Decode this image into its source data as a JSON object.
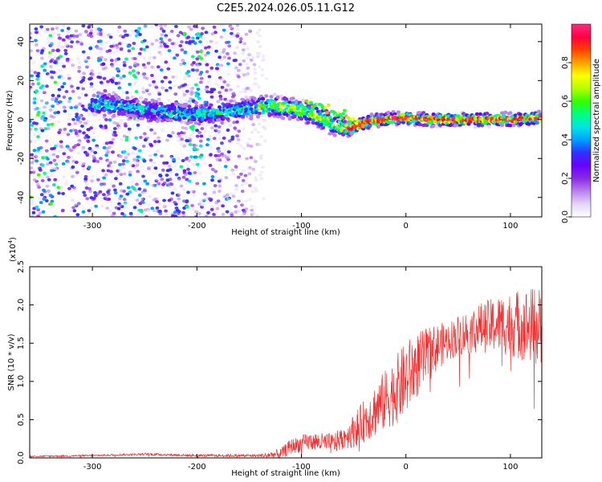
{
  "figure": {
    "title": "C2E5.2024.026.05.11.G12"
  },
  "chart_data": [
    {
      "type": "heatmap",
      "xlabel": "Height of straight line (km)",
      "ylabel": "Frequency (Hz)",
      "xlim": [
        -360,
        130
      ],
      "ylim": [
        -50,
        49
      ],
      "x_ticks": [
        -300,
        -200,
        -100,
        0,
        100
      ],
      "y_ticks": [
        -40,
        -20,
        0,
        20,
        40
      ],
      "colorbar": {
        "label": "Normalized spectral amplitude",
        "range": [
          0,
          1
        ],
        "ticks": [
          "0.0",
          "0.2",
          "0.4",
          "0.6",
          "0.8"
        ],
        "colors": [
          "#ffffff",
          "#e3d6f5",
          "#b980ee",
          "#8a2be2",
          "#6a00ff",
          "#3030ff",
          "#00a0ff",
          "#00e5e5",
          "#00ff80",
          "#33ff00",
          "#b3ff00",
          "#ffff00",
          "#ffa000",
          "#ff4000",
          "#ff0040",
          "#ff2a7f"
        ]
      },
      "ridge": [
        {
          "x": -290,
          "y": 8
        },
        {
          "x": -270,
          "y": 7
        },
        {
          "x": -250,
          "y": 5
        },
        {
          "x": -230,
          "y": 4
        },
        {
          "x": -210,
          "y": 3
        },
        {
          "x": -190,
          "y": 3
        },
        {
          "x": -170,
          "y": 4
        },
        {
          "x": -150,
          "y": 6
        },
        {
          "x": -130,
          "y": 7
        },
        {
          "x": -110,
          "y": 6
        },
        {
          "x": -90,
          "y": 3
        },
        {
          "x": -70,
          "y": -2
        },
        {
          "x": -55,
          "y": -5
        },
        {
          "x": -45,
          "y": -3
        },
        {
          "x": -35,
          "y": -1
        },
        {
          "x": -20,
          "y": 0
        },
        {
          "x": 0,
          "y": 1
        },
        {
          "x": 20,
          "y": 0
        },
        {
          "x": 40,
          "y": 0
        },
        {
          "x": 60,
          "y": 0
        },
        {
          "x": 80,
          "y": 0
        },
        {
          "x": 100,
          "y": 0
        },
        {
          "x": 130,
          "y": 1
        }
      ],
      "noise_extent_x": [
        -360,
        -130
      ]
    },
    {
      "type": "line",
      "xlabel": "Height of straight line (km)",
      "ylabel": "SNR (10 * v/v)",
      "yscale_label": "(x10",
      "yscale_exp": "4",
      "yscale_close": ")",
      "xlim": [
        -360,
        130
      ],
      "ylim": [
        0,
        2.5
      ],
      "x_ticks": [
        -300,
        -200,
        -100,
        0,
        100
      ],
      "y_ticks": [
        "0.0",
        "0.5",
        "1.0",
        "1.5",
        "2.0",
        "2.5"
      ],
      "series": [
        {
          "color": "#ee3333",
          "envelope": [
            {
              "x": -360,
              "y": 0.02
            },
            {
              "x": -300,
              "y": 0.03
            },
            {
              "x": -250,
              "y": 0.05
            },
            {
              "x": -200,
              "y": 0.03
            },
            {
              "x": -140,
              "y": 0.03
            },
            {
              "x": -120,
              "y": 0.05
            },
            {
              "x": -110,
              "y": 0.15
            },
            {
              "x": -90,
              "y": 0.22
            },
            {
              "x": -70,
              "y": 0.18
            },
            {
              "x": -50,
              "y": 0.35
            },
            {
              "x": -35,
              "y": 0.55
            },
            {
              "x": -20,
              "y": 0.75
            },
            {
              "x": -5,
              "y": 0.95
            },
            {
              "x": 10,
              "y": 1.2
            },
            {
              "x": 30,
              "y": 1.45
            },
            {
              "x": 50,
              "y": 1.6
            },
            {
              "x": 70,
              "y": 1.7
            },
            {
              "x": 90,
              "y": 1.75
            },
            {
              "x": 110,
              "y": 1.75
            },
            {
              "x": 130,
              "y": 1.7
            }
          ],
          "spread": [
            {
              "x": -360,
              "y": 0.01
            },
            {
              "x": -140,
              "y": 0.02
            },
            {
              "x": -110,
              "y": 0.1
            },
            {
              "x": -60,
              "y": 0.15
            },
            {
              "x": -30,
              "y": 0.35
            },
            {
              "x": 0,
              "y": 0.5
            },
            {
              "x": 40,
              "y": 0.25
            },
            {
              "x": 80,
              "y": 0.35
            },
            {
              "x": 130,
              "y": 0.55
            }
          ]
        }
      ]
    }
  ]
}
